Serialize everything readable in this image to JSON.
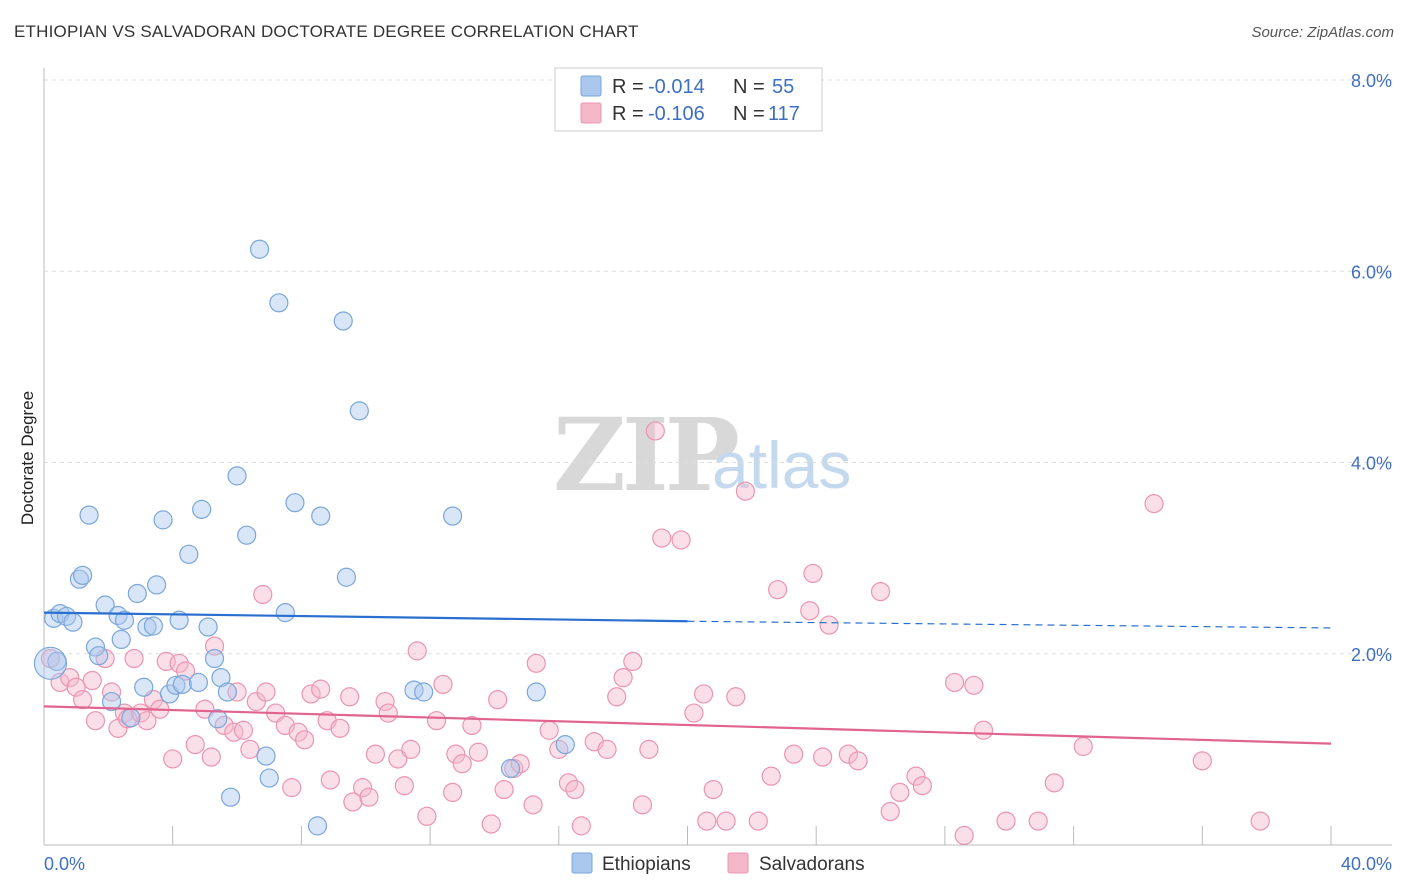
{
  "title": "ETHIOPIAN VS SALVADORAN DOCTORATE DEGREE CORRELATION CHART",
  "source": "Source: ZipAtlas.com",
  "watermark": {
    "part1": "ZIP",
    "part2": "atlas"
  },
  "colors": {
    "blue_fill": "#aac8ee",
    "blue_stroke": "#7aa6da",
    "blue_line": "#2a6fcf",
    "pink_fill": "#f5b8cb",
    "pink_stroke": "#ec94b0",
    "pink_line": "#e0648f",
    "tick": "#3f6fc0",
    "grid": "#dddddd"
  },
  "legend": {
    "rows": [
      {
        "r_label": "R =",
        "r_value": "-0.014",
        "n_label": "N =",
        "n_value": "55"
      },
      {
        "r_label": "R =",
        "r_value": "-0.106",
        "n_label": "N =",
        "n_value": "117"
      }
    ]
  },
  "bottom_legend": {
    "series1": "Ethiopians",
    "series2": "Salvadorans"
  },
  "chart_data": {
    "type": "scatter",
    "title": "ETHIOPIAN VS SALVADORAN DOCTORATE DEGREE CORRELATION CHART",
    "xlabel": "",
    "ylabel": "Doctorate Degree",
    "xlim": [
      0,
      40
    ],
    "ylim": [
      0,
      8
    ],
    "x_tick_labels": [
      "0.0%",
      "40.0%"
    ],
    "y_ticks": [
      {
        "value": 2,
        "label": "2.0%"
      },
      {
        "value": 4,
        "label": "4.0%"
      },
      {
        "value": 6,
        "label": "6.0%"
      },
      {
        "value": 8,
        "label": "8.0%"
      }
    ],
    "series": [
      {
        "name": "Ethiopians",
        "R": -0.014,
        "N": 55,
        "trend": {
          "x0": 0,
          "y0": 2.43,
          "x1": 20,
          "y1": 2.34,
          "dash_x1": 40,
          "dash_y1": 2.27
        },
        "points": [
          [
            0.3,
            2.37
          ],
          [
            0.5,
            2.42
          ],
          [
            0.7,
            2.39
          ],
          [
            0.9,
            2.33
          ],
          [
            0.4,
            1.92
          ],
          [
            1.1,
            2.78
          ],
          [
            1.2,
            2.82
          ],
          [
            1.4,
            3.45
          ],
          [
            1.6,
            2.07
          ],
          [
            1.7,
            1.98
          ],
          [
            1.9,
            2.51
          ],
          [
            2.1,
            1.5
          ],
          [
            2.3,
            2.4
          ],
          [
            2.4,
            2.15
          ],
          [
            2.5,
            2.35
          ],
          [
            2.7,
            1.33
          ],
          [
            2.9,
            2.63
          ],
          [
            3.1,
            1.65
          ],
          [
            3.2,
            2.28
          ],
          [
            3.4,
            2.29
          ],
          [
            3.5,
            2.72
          ],
          [
            3.7,
            3.4
          ],
          [
            3.9,
            1.58
          ],
          [
            4.1,
            1.67
          ],
          [
            4.2,
            2.35
          ],
          [
            4.3,
            1.68
          ],
          [
            4.5,
            3.04
          ],
          [
            4.8,
            1.7
          ],
          [
            4.9,
            3.51
          ],
          [
            5.1,
            2.28
          ],
          [
            5.3,
            1.95
          ],
          [
            5.4,
            1.32
          ],
          [
            5.5,
            1.75
          ],
          [
            5.7,
            1.6
          ],
          [
            5.8,
            0.5
          ],
          [
            6.0,
            3.86
          ],
          [
            6.3,
            3.24
          ],
          [
            6.7,
            6.23
          ],
          [
            6.9,
            0.93
          ],
          [
            7.0,
            0.7
          ],
          [
            7.3,
            5.67
          ],
          [
            7.5,
            2.43
          ],
          [
            7.8,
            3.58
          ],
          [
            8.5,
            0.2
          ],
          [
            8.6,
            3.44
          ],
          [
            9.3,
            5.48
          ],
          [
            9.4,
            2.8
          ],
          [
            9.8,
            4.54
          ],
          [
            11.5,
            1.62
          ],
          [
            11.8,
            1.6
          ],
          [
            12.7,
            3.44
          ],
          [
            14.5,
            0.8
          ],
          [
            15.3,
            1.6
          ],
          [
            16.2,
            1.05
          ],
          [
            0.2,
            1.9
          ]
        ]
      },
      {
        "name": "Salvadorans",
        "R": -0.106,
        "N": 117,
        "trend": {
          "x0": 0,
          "y0": 1.45,
          "x1": 40,
          "y1": 1.06
        },
        "points": [
          [
            0.2,
            1.95
          ],
          [
            0.5,
            1.7
          ],
          [
            0.8,
            1.75
          ],
          [
            1.0,
            1.65
          ],
          [
            1.2,
            1.52
          ],
          [
            1.5,
            1.72
          ],
          [
            1.6,
            1.3
          ],
          [
            1.9,
            1.95
          ],
          [
            2.1,
            1.6
          ],
          [
            2.3,
            1.22
          ],
          [
            2.5,
            1.38
          ],
          [
            2.6,
            1.32
          ],
          [
            2.8,
            1.95
          ],
          [
            3.0,
            1.38
          ],
          [
            3.2,
            1.3
          ],
          [
            3.4,
            1.52
          ],
          [
            3.6,
            1.42
          ],
          [
            3.8,
            1.92
          ],
          [
            4.0,
            0.9
          ],
          [
            4.2,
            1.9
          ],
          [
            4.4,
            1.82
          ],
          [
            4.7,
            1.05
          ],
          [
            5.0,
            1.42
          ],
          [
            5.2,
            0.92
          ],
          [
            5.3,
            2.08
          ],
          [
            5.6,
            1.25
          ],
          [
            5.9,
            1.18
          ],
          [
            6.0,
            1.6
          ],
          [
            6.2,
            1.2
          ],
          [
            6.4,
            1.0
          ],
          [
            6.6,
            1.5
          ],
          [
            6.8,
            2.62
          ],
          [
            6.9,
            1.6
          ],
          [
            7.2,
            1.38
          ],
          [
            7.5,
            1.25
          ],
          [
            7.7,
            0.6
          ],
          [
            7.9,
            1.18
          ],
          [
            8.1,
            1.1
          ],
          [
            8.3,
            1.58
          ],
          [
            8.6,
            1.63
          ],
          [
            8.8,
            1.3
          ],
          [
            8.9,
            0.68
          ],
          [
            9.2,
            1.22
          ],
          [
            9.5,
            1.55
          ],
          [
            9.6,
            0.45
          ],
          [
            9.9,
            0.6
          ],
          [
            10.1,
            0.5
          ],
          [
            10.3,
            0.95
          ],
          [
            10.6,
            1.5
          ],
          [
            10.7,
            1.38
          ],
          [
            11.0,
            0.9
          ],
          [
            11.2,
            0.62
          ],
          [
            11.4,
            1.0
          ],
          [
            11.6,
            2.03
          ],
          [
            11.9,
            0.3
          ],
          [
            12.2,
            1.3
          ],
          [
            12.4,
            1.68
          ],
          [
            12.7,
            0.55
          ],
          [
            12.8,
            0.95
          ],
          [
            13.0,
            0.85
          ],
          [
            13.3,
            1.25
          ],
          [
            13.5,
            0.97
          ],
          [
            13.9,
            0.22
          ],
          [
            14.1,
            1.52
          ],
          [
            14.3,
            0.58
          ],
          [
            14.6,
            0.8
          ],
          [
            14.8,
            0.85
          ],
          [
            15.2,
            0.42
          ],
          [
            15.3,
            1.9
          ],
          [
            15.7,
            1.2
          ],
          [
            16.0,
            1.0
          ],
          [
            16.3,
            0.65
          ],
          [
            16.5,
            0.58
          ],
          [
            16.7,
            0.2
          ],
          [
            17.1,
            1.08
          ],
          [
            17.5,
            1.0
          ],
          [
            17.8,
            1.55
          ],
          [
            18.0,
            1.75
          ],
          [
            18.3,
            1.92
          ],
          [
            18.6,
            0.42
          ],
          [
            18.8,
            1.0
          ],
          [
            19.0,
            4.33
          ],
          [
            19.2,
            3.21
          ],
          [
            19.8,
            3.19
          ],
          [
            20.2,
            1.38
          ],
          [
            20.5,
            1.58
          ],
          [
            20.6,
            0.25
          ],
          [
            20.8,
            0.58
          ],
          [
            21.2,
            0.25
          ],
          [
            21.5,
            1.55
          ],
          [
            21.8,
            3.7
          ],
          [
            22.2,
            0.25
          ],
          [
            22.6,
            0.72
          ],
          [
            22.8,
            2.67
          ],
          [
            23.3,
            0.95
          ],
          [
            23.8,
            2.45
          ],
          [
            24.2,
            0.92
          ],
          [
            23.9,
            2.84
          ],
          [
            24.4,
            2.3
          ],
          [
            25.0,
            0.95
          ],
          [
            25.3,
            0.88
          ],
          [
            26.0,
            2.65
          ],
          [
            26.3,
            0.35
          ],
          [
            26.6,
            0.55
          ],
          [
            27.1,
            0.72
          ],
          [
            27.3,
            0.62
          ],
          [
            28.3,
            1.7
          ],
          [
            28.6,
            0.1
          ],
          [
            28.9,
            1.67
          ],
          [
            29.2,
            1.2
          ],
          [
            29.9,
            0.25
          ],
          [
            30.9,
            0.25
          ],
          [
            31.4,
            0.65
          ],
          [
            32.3,
            1.03
          ],
          [
            34.5,
            3.57
          ],
          [
            36.0,
            0.88
          ],
          [
            37.8,
            0.25
          ]
        ]
      }
    ]
  }
}
